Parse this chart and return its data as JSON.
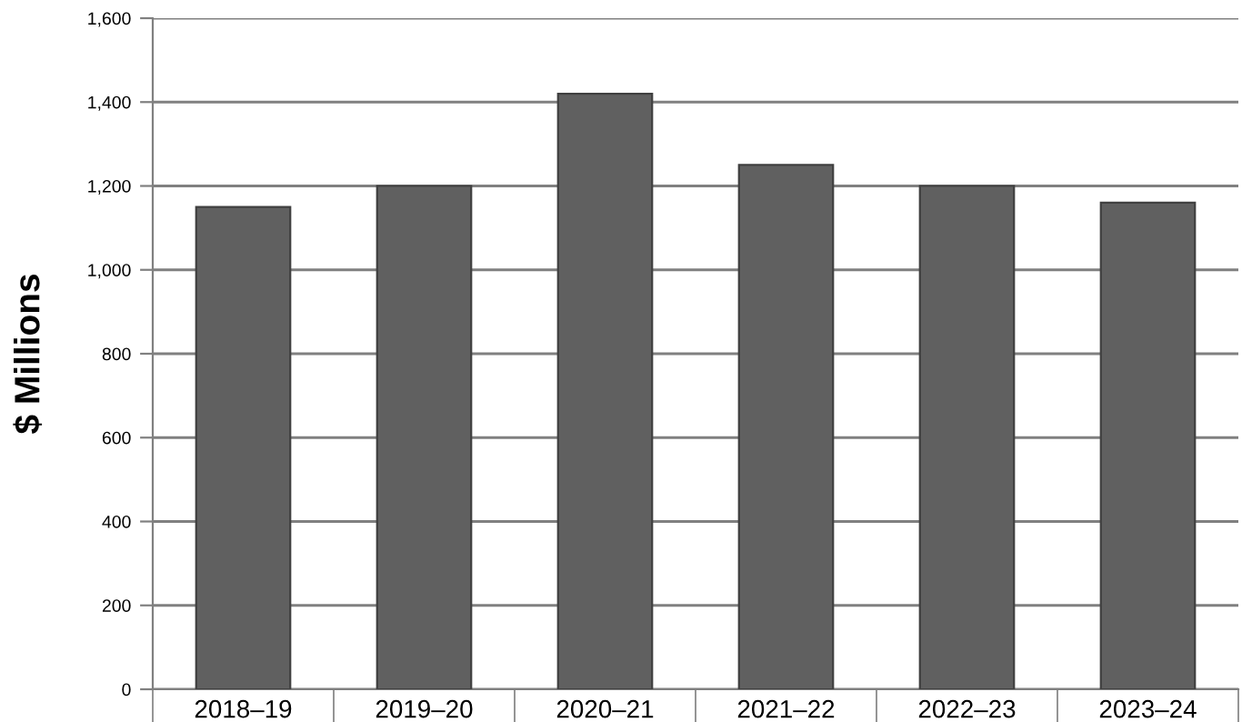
{
  "chart_data": {
    "type": "bar",
    "ylabel": "$ Millions",
    "categories": [
      "2018–19",
      "2019–20",
      "2020–21",
      "2021–22",
      "2022–23",
      "2023–24"
    ],
    "values": [
      1150,
      1200,
      1420,
      1250,
      1200,
      1160
    ],
    "color": "#606060",
    "ylim": [
      0,
      1600
    ],
    "yticks": [
      {
        "value": 0,
        "label": "0"
      },
      {
        "value": 200,
        "label": "200"
      },
      {
        "value": 400,
        "label": "400"
      },
      {
        "value": 600,
        "label": "600"
      },
      {
        "value": 800,
        "label": "800"
      },
      {
        "value": 1000,
        "label": "1,000"
      },
      {
        "value": 1200,
        "label": "1,200"
      },
      {
        "value": 1400,
        "label": "1,400"
      },
      {
        "value": 1600,
        "label": "1,600"
      }
    ],
    "grid": "y",
    "legend": false
  }
}
